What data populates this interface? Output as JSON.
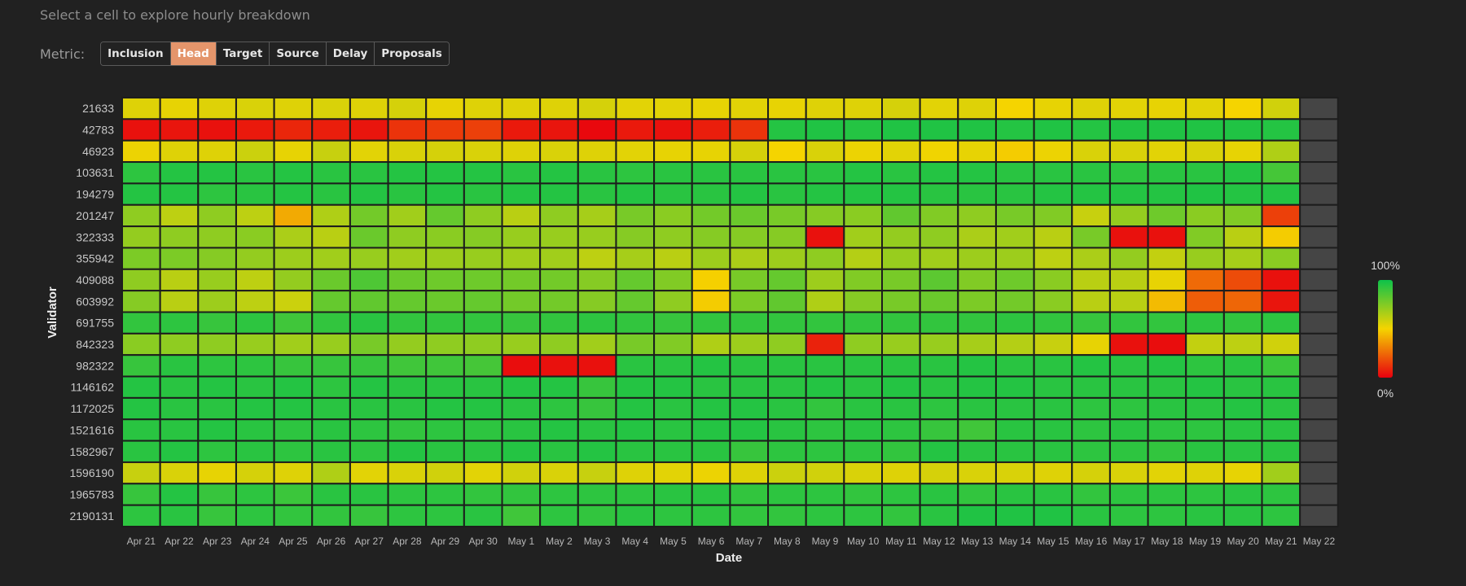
{
  "header": {
    "subtitle": "Select a cell to explore hourly breakdown",
    "metric_label": "Metric:",
    "metrics": [
      "Inclusion",
      "Head",
      "Target",
      "Source",
      "Delay",
      "Proposals"
    ],
    "active_metric": "Head"
  },
  "chart_data": {
    "type": "heatmap",
    "xlabel": "Date",
    "ylabel": "Validator",
    "x": [
      "Apr 21",
      "Apr 22",
      "Apr 23",
      "Apr 24",
      "Apr 25",
      "Apr 26",
      "Apr 27",
      "Apr 28",
      "Apr 29",
      "Apr 30",
      "May 1",
      "May 2",
      "May 3",
      "May 4",
      "May 5",
      "May 6",
      "May 7",
      "May 8",
      "May 9",
      "May 10",
      "May 11",
      "May 12",
      "May 13",
      "May 14",
      "May 15",
      "May 16",
      "May 17",
      "May 18",
      "May 19",
      "May 20",
      "May 21",
      "May 22"
    ],
    "y": [
      "21633",
      "42783",
      "46923",
      "103631",
      "194279",
      "201247",
      "322333",
      "355942",
      "409088",
      "603992",
      "691755",
      "842323",
      "982322",
      "1146162",
      "1172025",
      "1521616",
      "1582967",
      "1596190",
      "1965783",
      "2190131"
    ],
    "colorbar": {
      "max_label": "100%",
      "min_label": "0%",
      "range": [
        0,
        100
      ]
    },
    "colors": {
      "high": "#0dc24a",
      "mid": "#f5d400",
      "low": "#e8000e",
      "no_data": "#454545"
    },
    "values": [
      [
        55,
        53,
        55,
        56,
        55,
        56,
        55,
        57,
        53,
        55,
        55,
        55,
        57,
        54,
        54,
        53,
        54,
        53,
        55,
        55,
        57,
        54,
        55,
        50,
        53,
        55,
        54,
        53,
        54,
        50,
        58,
        null
      ],
      [
        4,
        5,
        4,
        6,
        9,
        7,
        5,
        12,
        14,
        15,
        6,
        5,
        2,
        6,
        4,
        7,
        12,
        95,
        96,
        95,
        96,
        96,
        96,
        95,
        96,
        95,
        96,
        96,
        96,
        96,
        95,
        null
      ],
      [
        52,
        55,
        55,
        59,
        53,
        60,
        54,
        56,
        57,
        56,
        55,
        56,
        55,
        54,
        53,
        53,
        57,
        50,
        56,
        52,
        54,
        51,
        53,
        48,
        52,
        56,
        56,
        54,
        56,
        53,
        65,
        null
      ],
      [
        93,
        95,
        95,
        94,
        95,
        94,
        94,
        95,
        95,
        95,
        94,
        95,
        94,
        93,
        94,
        94,
        94,
        94,
        94,
        95,
        94,
        95,
        95,
        94,
        94,
        94,
        93,
        94,
        94,
        95,
        88,
        null
      ],
      [
        95,
        95,
        93,
        94,
        95,
        94,
        95,
        94,
        95,
        94,
        95,
        95,
        94,
        95,
        94,
        94,
        95,
        94,
        95,
        95,
        95,
        94,
        94,
        94,
        95,
        95,
        95,
        95,
        96,
        95,
        95,
        null
      ],
      [
        72,
        62,
        72,
        62,
        40,
        65,
        78,
        68,
        81,
        72,
        63,
        72,
        67,
        77,
        73,
        78,
        80,
        77,
        74,
        73,
        82,
        75,
        72,
        77,
        75,
        60,
        71,
        79,
        73,
        75,
        15,
        null
      ],
      [
        71,
        72,
        72,
        73,
        66,
        63,
        80,
        72,
        73,
        74,
        70,
        70,
        70,
        74,
        72,
        74,
        74,
        74,
        4,
        68,
        71,
        72,
        66,
        68,
        63,
        77,
        4,
        4,
        75,
        63,
        48,
        null
      ],
      [
        76,
        76,
        74,
        71,
        69,
        68,
        70,
        68,
        69,
        70,
        68,
        68,
        62,
        67,
        63,
        69,
        66,
        69,
        72,
        64,
        70,
        68,
        69,
        69,
        62,
        66,
        71,
        61,
        70,
        67,
        73,
        null
      ],
      [
        72,
        63,
        70,
        62,
        71,
        80,
        86,
        80,
        79,
        79,
        78,
        78,
        74,
        81,
        75,
        49,
        77,
        81,
        69,
        75,
        77,
        83,
        75,
        79,
        73,
        63,
        63,
        53,
        25,
        18,
        4,
        null
      ],
      [
        74,
        63,
        69,
        62,
        59,
        81,
        82,
        81,
        80,
        81,
        78,
        78,
        74,
        81,
        72,
        48,
        76,
        82,
        65,
        74,
        77,
        80,
        76,
        78,
        73,
        63,
        63,
        44,
        22,
        24,
        5,
        null
      ],
      [
        92,
        93,
        91,
        93,
        89,
        92,
        94,
        92,
        92,
        92,
        91,
        92,
        93,
        92,
        91,
        92,
        92,
        92,
        92,
        92,
        92,
        92,
        92,
        93,
        92,
        91,
        92,
        92,
        93,
        92,
        93,
        null
      ],
      [
        73,
        72,
        72,
        70,
        68,
        70,
        77,
        71,
        72,
        72,
        70,
        72,
        68,
        77,
        75,
        65,
        69,
        72,
        8,
        72,
        70,
        70,
        67,
        64,
        60,
        53,
        4,
        3,
        61,
        62,
        58,
        null
      ],
      [
        91,
        94,
        93,
        93,
        91,
        91,
        91,
        89,
        89,
        88,
        3,
        4,
        4,
        94,
        94,
        95,
        94,
        94,
        94,
        94,
        94,
        94,
        95,
        94,
        94,
        95,
        94,
        95,
        93,
        94,
        90,
        null
      ],
      [
        95,
        94,
        95,
        94,
        95,
        93,
        95,
        94,
        94,
        94,
        95,
        95,
        91,
        95,
        95,
        94,
        94,
        94,
        95,
        94,
        95,
        94,
        95,
        95,
        94,
        94,
        94,
        94,
        95,
        94,
        94,
        null
      ],
      [
        95,
        94,
        94,
        95,
        95,
        94,
        94,
        94,
        95,
        95,
        94,
        93,
        91,
        95,
        94,
        95,
        95,
        94,
        92,
        94,
        94,
        93,
        94,
        94,
        94,
        93,
        93,
        94,
        94,
        95,
        94,
        null
      ],
      [
        94,
        94,
        95,
        94,
        93,
        94,
        93,
        92,
        93,
        93,
        94,
        95,
        94,
        95,
        94,
        95,
        95,
        94,
        93,
        94,
        93,
        91,
        89,
        94,
        94,
        93,
        94,
        93,
        93,
        94,
        94,
        null
      ],
      [
        94,
        95,
        93,
        94,
        93,
        94,
        93,
        95,
        94,
        94,
        95,
        94,
        95,
        94,
        94,
        94,
        91,
        93,
        93,
        93,
        92,
        95,
        94,
        94,
        94,
        93,
        93,
        92,
        94,
        94,
        94,
        null
      ],
      [
        60,
        56,
        53,
        57,
        55,
        65,
        54,
        56,
        58,
        54,
        58,
        56,
        60,
        55,
        54,
        52,
        55,
        59,
        58,
        56,
        55,
        57,
        56,
        56,
        55,
        57,
        56,
        54,
        55,
        53,
        68,
        null
      ],
      [
        91,
        95,
        91,
        93,
        90,
        94,
        94,
        93,
        93,
        92,
        92,
        93,
        93,
        93,
        94,
        94,
        92,
        93,
        93,
        92,
        93,
        94,
        92,
        94,
        94,
        92,
        93,
        93,
        93,
        94,
        93,
        null
      ],
      [
        93,
        94,
        91,
        93,
        92,
        92,
        91,
        93,
        93,
        94,
        89,
        93,
        92,
        94,
        93,
        93,
        92,
        92,
        93,
        93,
        92,
        94,
        96,
        96,
        96,
        94,
        93,
        93,
        94,
        94,
        93,
        null
      ]
    ]
  }
}
